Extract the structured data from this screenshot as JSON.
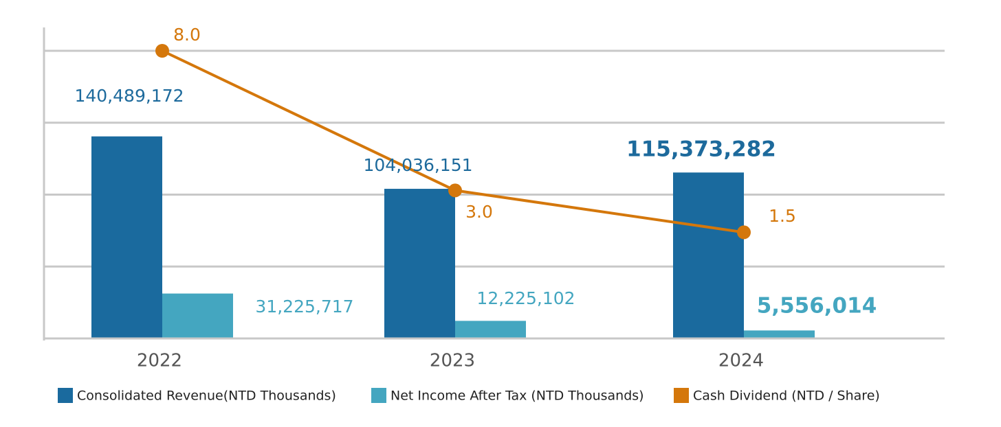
{
  "chart_data": {
    "type": "bar_line",
    "categories": [
      "2022",
      "2023",
      "2024"
    ],
    "series": [
      {
        "name": "Consolidated Revenue(NTD Thousands)",
        "color": "#1a6a9e",
        "type": "bar",
        "values": [
          140489172,
          104036151,
          115373282
        ],
        "value_labels": [
          "140,489,172",
          "104,036,151",
          "115,373,282"
        ]
      },
      {
        "name": "Net Income After Tax (NTD Thousands)",
        "color": "#44a6c0",
        "type": "bar",
        "values": [
          31225717,
          12225102,
          5556014
        ],
        "value_labels": [
          "31,225,717",
          "12,225,102",
          "5,556,014"
        ]
      },
      {
        "name": "Cash Dividend (NTD / Share)",
        "color": "#d4770b",
        "type": "line",
        "axis": "y2",
        "values": [
          8.0,
          3.0,
          1.5
        ],
        "value_labels": [
          "8.0",
          "3.0",
          "1.5"
        ]
      }
    ],
    "ylim": [
      0,
      200000000
    ],
    "yticks": [
      0,
      50000000,
      100000000,
      150000000,
      200000000
    ],
    "y2lim": [
      -2.3,
      8.0
    ],
    "grid": true
  }
}
